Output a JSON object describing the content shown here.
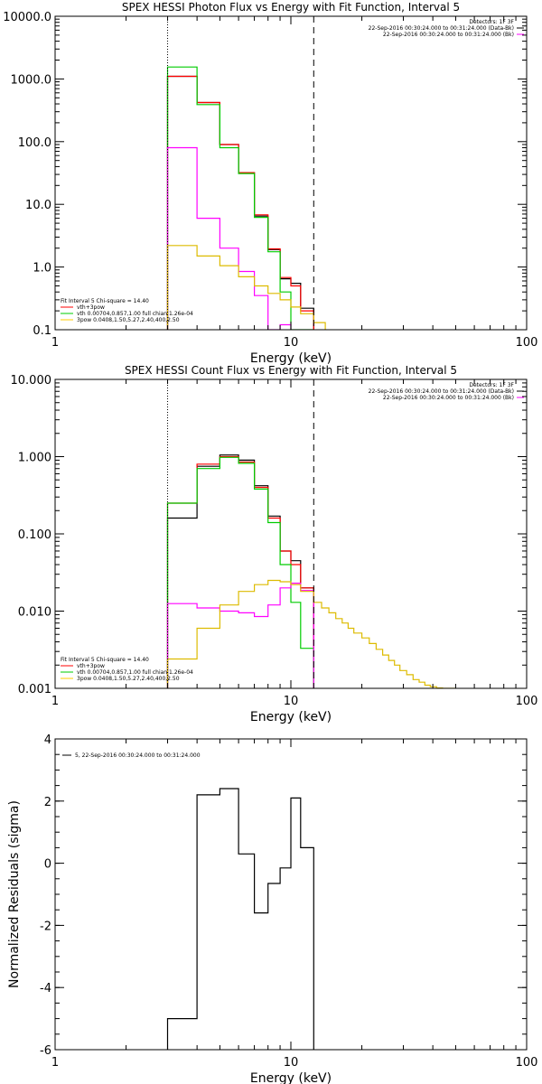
{
  "chart_data": [
    {
      "type": "line",
      "title": "SPEX HESSI Photon Flux vs Energy with Fit Function, Interval 5",
      "xlabel": "Energy (keV)",
      "ylabel": "",
      "xscale": "log",
      "yscale": "log",
      "xlim": [
        1,
        100
      ],
      "ylim": [
        0.1,
        10000
      ],
      "x_ticks": [
        {
          "value": 1,
          "label": "1"
        },
        {
          "value": 10,
          "label": "10"
        },
        {
          "value": 100,
          "label": "100"
        }
      ],
      "y_ticks": [
        {
          "value": 0.1,
          "label": "0.1"
        },
        {
          "value": 1,
          "label": "1.0"
        },
        {
          "value": 10,
          "label": "10.0"
        },
        {
          "value": 100,
          "label": "100.0"
        },
        {
          "value": 1000,
          "label": "1000.0"
        },
        {
          "value": 10000,
          "label": "10000.0"
        }
      ],
      "vlines": [
        {
          "x": 3.0,
          "style": "dotted"
        },
        {
          "x": 12.5,
          "style": "dashed"
        }
      ],
      "legend_top_right": [
        {
          "text": "Detectors: 1F 3F",
          "color": ""
        },
        {
          "text": "22-Sep-2016 00:30:24.000 to 00:31:24.000 (Data-Bk)",
          "color": "#000000"
        },
        {
          "text": "22-Sep-2016 00:30:24.000 to 00:31:24.000 (Bk)",
          "color": "#ff00ff"
        }
      ],
      "legend_bottom_left": [
        {
          "text": "Fit Interval 5   Chi-square = 14.40",
          "color": ""
        },
        {
          "text": "vth+3pow",
          "color": "#ff0000"
        },
        {
          "text": "vth 0.00704,0.857,1.00  full chian 1.26e-04",
          "color": "#00cc00"
        },
        {
          "text": "3pow 0.0408,1.50,5.27,2.40,400,2.50",
          "color": "#ffcc00"
        }
      ],
      "series": [
        {
          "color": "#000000",
          "edges": [
            3.0,
            4.0,
            5.0,
            6.0,
            7.0,
            8.0,
            9.0,
            10.0,
            11.0,
            12.5
          ],
          "values": [
            1100,
            420,
            90,
            32,
            6.5,
            1.9,
            0.65,
            0.55,
            0.22
          ]
        },
        {
          "color": "#ff0000",
          "edges": [
            3.0,
            4.0,
            5.0,
            6.0,
            7.0,
            8.0,
            9.0,
            10.0,
            11.0,
            12.5
          ],
          "values": [
            1100,
            420,
            90,
            32,
            6.8,
            1.95,
            0.68,
            0.5,
            0.2
          ]
        },
        {
          "color": "#00cc00",
          "edges": [
            3.0,
            4.0,
            5.0,
            6.0,
            7.0,
            8.0,
            9.0,
            10.0,
            11.0,
            12.5
          ],
          "values": [
            1550,
            390,
            80,
            31,
            6.2,
            1.75,
            0.4,
            0.1,
            0.05
          ]
        },
        {
          "color": "#ff00ff",
          "edges": [
            3.0,
            4.0,
            5.0,
            6.0,
            7.0,
            8.0,
            9.0,
            10.0
          ],
          "values": [
            80,
            6,
            2,
            0.85,
            0.35,
            0.1,
            0.12
          ]
        },
        {
          "color": "#ddbb00",
          "edges": [
            3.0,
            4.0,
            5.0,
            6.0,
            7.0,
            8.0,
            9.0,
            10.0,
            11.0,
            12.5,
            14.0
          ],
          "values": [
            2.2,
            1.5,
            1.05,
            0.7,
            0.5,
            0.38,
            0.3,
            0.23,
            0.18,
            0.13
          ]
        }
      ]
    },
    {
      "type": "line",
      "title": "SPEX HESSI Count Flux vs Energy with Fit Function, Interval 5",
      "xlabel": "Energy (keV)",
      "ylabel": "",
      "xscale": "log",
      "yscale": "log",
      "xlim": [
        1,
        100
      ],
      "ylim": [
        0.001,
        10
      ],
      "x_ticks": [
        {
          "value": 1,
          "label": "1"
        },
        {
          "value": 10,
          "label": "10"
        },
        {
          "value": 100,
          "label": "100"
        }
      ],
      "y_ticks": [
        {
          "value": 0.001,
          "label": "0.001"
        },
        {
          "value": 0.01,
          "label": "0.010"
        },
        {
          "value": 0.1,
          "label": "0.100"
        },
        {
          "value": 1,
          "label": "1.000"
        },
        {
          "value": 10,
          "label": "10.000"
        }
      ],
      "vlines": [
        {
          "x": 3.0,
          "style": "dotted"
        },
        {
          "x": 12.5,
          "style": "dashed"
        }
      ],
      "legend_top_right": [
        {
          "text": "Detectors: 1F 3F",
          "color": ""
        },
        {
          "text": "22-Sep-2016 00:30:24.000 to 00:31:24.000 (Data-Bk)",
          "color": "#000000"
        },
        {
          "text": "22-Sep-2016 00:30:24.000 to 00:31:24.000 (Bk)",
          "color": "#ff00ff"
        }
      ],
      "legend_bottom_left": [
        {
          "text": "Fit Interval 5   Chi-square = 14.40",
          "color": ""
        },
        {
          "text": "vth+3pow",
          "color": "#ff0000"
        },
        {
          "text": "vth 0.00704,0.857,1.00  full chian 1.26e-04",
          "color": "#00cc00"
        },
        {
          "text": "3pow 0.0408,1.50,5.27,2.40,400,2.50",
          "color": "#ffcc00"
        }
      ],
      "series": [
        {
          "color": "#000000",
          "edges": [
            3.0,
            4.0,
            5.0,
            6.0,
            7.0,
            8.0,
            9.0,
            10.0,
            11.0,
            12.5
          ],
          "values": [
            0.16,
            0.75,
            1.05,
            0.9,
            0.42,
            0.17,
            0.06,
            0.045,
            0.02
          ]
        },
        {
          "color": "#ff0000",
          "edges": [
            3.0,
            4.0,
            5.0,
            6.0,
            7.0,
            8.0,
            9.0,
            10.0,
            11.0,
            12.5
          ],
          "values": [
            0.25,
            0.8,
            1.0,
            0.85,
            0.4,
            0.16,
            0.06,
            0.04,
            0.02
          ]
        },
        {
          "color": "#00cc00",
          "edges": [
            3.0,
            4.0,
            5.0,
            6.0,
            7.0,
            8.0,
            9.0,
            10.0,
            11.0,
            12.5
          ],
          "values": [
            0.25,
            0.7,
            0.98,
            0.82,
            0.38,
            0.14,
            0.04,
            0.013,
            0.0033
          ]
        },
        {
          "color": "#ff00ff",
          "edges": [
            3.0,
            4.0,
            5.0,
            6.0,
            7.0,
            8.0,
            9.0,
            10.0,
            11.0,
            12.5
          ],
          "values": [
            0.0125,
            0.011,
            0.01,
            0.0095,
            0.0085,
            0.012,
            0.02,
            0.023,
            0.0185
          ]
        },
        {
          "color": "#ddbb00",
          "edges": [
            3.0,
            4.0,
            5.0,
            6.0,
            7.0,
            8.0,
            9.0,
            10.0,
            11.0,
            12.5,
            13.5,
            14.5,
            15.5,
            16.5,
            17.5,
            18.5,
            20.0,
            21.5,
            23.0,
            24.5,
            26.0,
            27.5,
            29.0,
            31.0,
            33.0,
            35.0,
            37.0,
            39.0,
            41.5,
            44.0,
            47.0,
            50.0
          ],
          "values": [
            0.0024,
            0.006,
            0.012,
            0.018,
            0.022,
            0.025,
            0.024,
            0.022,
            0.018,
            0.013,
            0.011,
            0.0095,
            0.008,
            0.007,
            0.006,
            0.0052,
            0.0045,
            0.0038,
            0.0032,
            0.0027,
            0.0023,
            0.002,
            0.0017,
            0.0015,
            0.0013,
            0.0012,
            0.0011,
            0.00105,
            0.00101,
            0.001,
            0.001
          ]
        }
      ]
    },
    {
      "type": "line",
      "title": "",
      "xlabel": "Energy (keV)",
      "ylabel": "Normalized Residuals (sigma)",
      "xscale": "log",
      "yscale": "linear",
      "xlim": [
        1,
        100
      ],
      "ylim": [
        -6,
        4
      ],
      "x_ticks": [
        {
          "value": 1,
          "label": "1"
        },
        {
          "value": 10,
          "label": "10"
        },
        {
          "value": 100,
          "label": "100"
        }
      ],
      "y_ticks": [
        {
          "value": -6,
          "label": "-6"
        },
        {
          "value": -4,
          "label": "-4"
        },
        {
          "value": -2,
          "label": "-2"
        },
        {
          "value": 0,
          "label": "0"
        },
        {
          "value": 2,
          "label": "2"
        },
        {
          "value": 4,
          "label": "4"
        }
      ],
      "vlines": [],
      "legend_top_left": [
        {
          "text": "5, 22-Sep-2016 00:30:24.000 to 00:31:24.000",
          "color": "#000000"
        }
      ],
      "series": [
        {
          "color": "#000000",
          "edges": [
            3.0,
            4.0,
            5.0,
            6.0,
            7.0,
            8.0,
            9.0,
            10.0,
            11.0,
            12.5
          ],
          "values": [
            -5.0,
            2.2,
            2.4,
            0.3,
            -1.6,
            -0.65,
            -0.15,
            2.1,
            0.5
          ]
        }
      ]
    }
  ]
}
